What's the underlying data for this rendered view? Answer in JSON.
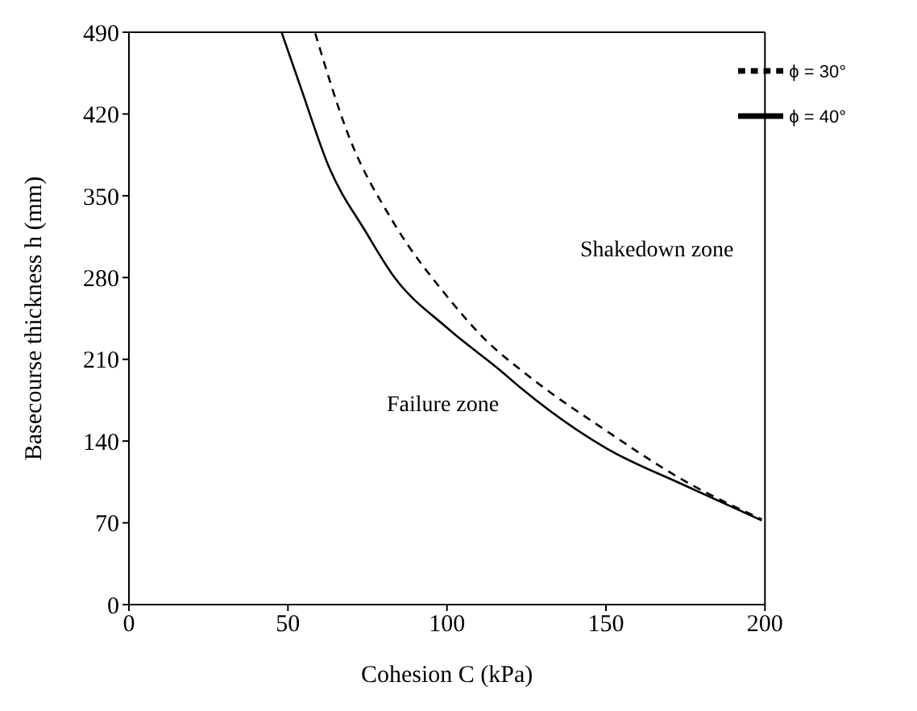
{
  "chart_data": {
    "type": "line",
    "xlabel": "Cohesion  C  (kPa)",
    "ylabel": "Basecourse thickness  h  (mm)",
    "xlim": [
      0,
      200
    ],
    "xticks": [
      0,
      50,
      100,
      150,
      200
    ],
    "ylim": [
      0,
      490
    ],
    "yticks": [
      0,
      70,
      140,
      210,
      280,
      350,
      420,
      490
    ],
    "grid": false,
    "legend": "top right",
    "marker": "none",
    "annotations": [
      "Shakedown zone",
      "Failure zone"
    ],
    "series": [
      {
        "name": "ϕ = 30°",
        "color": "#000000",
        "line_style": "dashed",
        "x": [
          58.6,
          69,
          83,
          100,
          112,
          126,
          150,
          174,
          199
        ],
        "values": [
          489,
          402,
          328,
          264,
          227,
          195,
          149,
          107,
          73
        ]
      },
      {
        "name": "ϕ = 40°",
        "color": "#000000",
        "line_style": "solid",
        "x": [
          48,
          54,
          63,
          74.5,
          83,
          100,
          117,
          123,
          150,
          174,
          199
        ],
        "values": [
          490,
          443,
          374,
          319,
          282,
          237,
          200,
          186,
          134,
          103,
          72
        ]
      }
    ]
  }
}
